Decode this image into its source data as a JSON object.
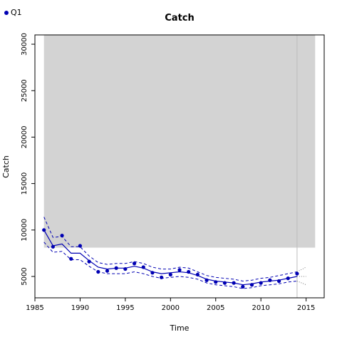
{
  "legend": {
    "label": "Q1",
    "color": "#0000b3"
  },
  "chart_data": {
    "type": "line",
    "title": "Catch",
    "xlabel": "Time",
    "ylabel": "Catch",
    "xlim": [
      1985,
      2017
    ],
    "ylim": [
      2700,
      31000
    ],
    "xticks": [
      1985,
      1990,
      1995,
      2000,
      2005,
      2010,
      2015
    ],
    "yticks": [
      5000,
      10000,
      15000,
      20000,
      25000,
      30000
    ],
    "colors": {
      "series": "#0000b3",
      "band": "#d3d3d3",
      "vline": "#bdbdbd",
      "proj": "#555555"
    },
    "shaded_region": {
      "x": [
        1986,
        2016
      ],
      "y": [
        8100,
        31000
      ]
    },
    "vertical_line_x": 2014,
    "series": [
      {
        "name": "Q1",
        "x": [
          1986,
          1987,
          1988,
          1989,
          1990,
          1991,
          1992,
          1993,
          1994,
          1995,
          1996,
          1997,
          1998,
          1999,
          2000,
          2001,
          2002,
          2003,
          2004,
          2005,
          2006,
          2007,
          2008,
          2009,
          2010,
          2011,
          2012,
          2013,
          2014
        ],
        "fit": [
          10000,
          8300,
          8500,
          7500,
          7500,
          6700,
          6000,
          5800,
          5900,
          5900,
          6100,
          5900,
          5500,
          5300,
          5400,
          5500,
          5400,
          5100,
          4700,
          4500,
          4400,
          4300,
          4100,
          4200,
          4400,
          4500,
          4600,
          4800,
          5000
        ],
        "upper": [
          11400,
          9200,
          9300,
          8200,
          8200,
          7200,
          6500,
          6300,
          6400,
          6400,
          6600,
          6400,
          6000,
          5800,
          5800,
          6000,
          5900,
          5500,
          5100,
          4900,
          4800,
          4700,
          4500,
          4600,
          4800,
          4900,
          5100,
          5300,
          5500
        ],
        "lower": [
          8700,
          7600,
          7700,
          6800,
          6800,
          6100,
          5500,
          5300,
          5300,
          5300,
          5500,
          5300,
          5000,
          4800,
          4900,
          5000,
          4900,
          4700,
          4300,
          4100,
          4000,
          3900,
          3700,
          3800,
          4000,
          4100,
          4200,
          4400,
          4500
        ],
        "observed": [
          10000,
          8200,
          9400,
          6900,
          8300,
          6600,
          5500,
          5600,
          5900,
          5800,
          6400,
          6000,
          5400,
          4900,
          5200,
          5700,
          5500,
          5200,
          4600,
          4400,
          4300,
          4300,
          3900,
          4100,
          4300,
          4600,
          4500,
          4800,
          5300
        ]
      }
    ],
    "projection": {
      "x": [
        2014,
        2015
      ],
      "fit": [
        5000,
        5000
      ],
      "upper": [
        5500,
        6000
      ],
      "lower": [
        4500,
        4100
      ]
    }
  }
}
